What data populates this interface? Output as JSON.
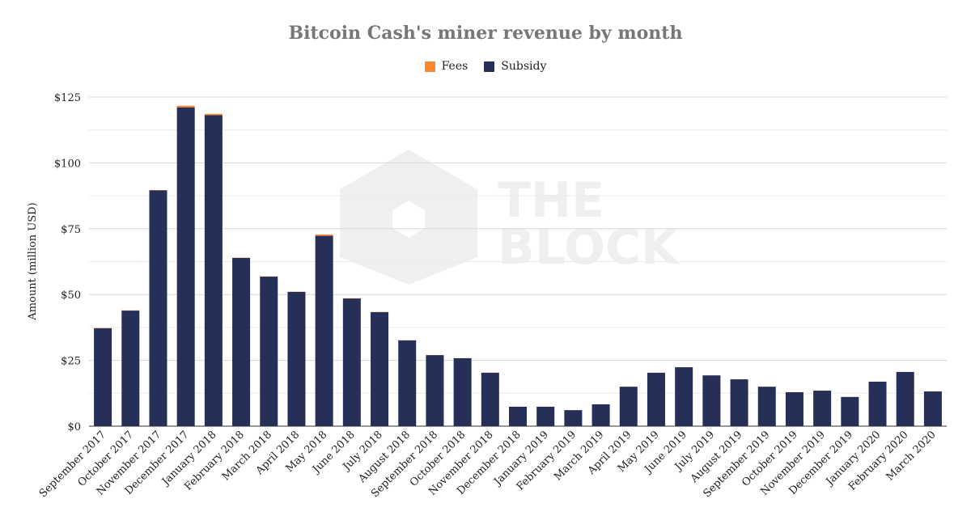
{
  "chart_data": {
    "type": "bar",
    "stacked": true,
    "title": "Bitcoin Cash's miner revenue by month",
    "xlabel": "",
    "ylabel": "Amount (million USD)",
    "ylim": [
      0,
      125
    ],
    "yticks": [
      "$0",
      "$25",
      "$50",
      "$75",
      "$100",
      "$125"
    ],
    "ytick_values": [
      0,
      25,
      50,
      75,
      100,
      125
    ],
    "grid": true,
    "legend_position": "top-center",
    "watermark": "THE BLOCK",
    "categories": [
      "September 2017",
      "October 2017",
      "November 2017",
      "December 2017",
      "January 2018",
      "February 2018",
      "March 2018",
      "April 2018",
      "May 2018",
      "June 2018",
      "July 2018",
      "August 2018",
      "September 2018",
      "October 2018",
      "November 2018",
      "December 2018",
      "January 2019",
      "February 2019",
      "March 2019",
      "April 2019",
      "May 2019",
      "June 2019",
      "July 2019",
      "August 2019",
      "September 2019",
      "October 2019",
      "November 2019",
      "December 2019",
      "January 2020",
      "February 2020",
      "March 2020"
    ],
    "series": [
      {
        "name": "Subsidy",
        "color": "#262f57",
        "values": [
          37.2,
          43.9,
          89.6,
          121.1,
          118.1,
          63.9,
          56.8,
          51.0,
          72.3,
          48.5,
          43.3,
          32.6,
          27.0,
          25.8,
          20.3,
          7.4,
          7.4,
          6.1,
          8.3,
          15.0,
          20.3,
          22.4,
          19.3,
          17.8,
          15.0,
          12.9,
          13.5,
          11.1,
          16.9,
          20.6,
          13.2
        ]
      },
      {
        "name": "Fees",
        "color": "#f7882f",
        "values": [
          0.1,
          0.1,
          0.1,
          0.6,
          0.5,
          0.1,
          0.1,
          0.1,
          0.5,
          0.1,
          0.1,
          0.05,
          0.05,
          0.05,
          0.05,
          0.02,
          0.02,
          0.02,
          0.02,
          0.02,
          0.02,
          0.02,
          0.02,
          0.02,
          0.02,
          0.02,
          0.02,
          0.02,
          0.02,
          0.02,
          0.02
        ]
      }
    ]
  }
}
